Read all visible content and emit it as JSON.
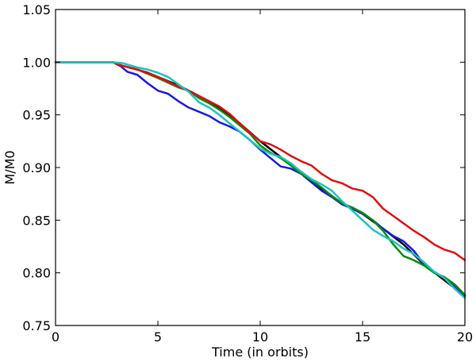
{
  "chart_data": {
    "type": "line",
    "title": "",
    "xlabel": "Time (in orbits)",
    "ylabel": "M/M0",
    "xlim": [
      0,
      20
    ],
    "ylim": [
      0.75,
      1.05
    ],
    "xticks": [
      0,
      5,
      10,
      15,
      20
    ],
    "xtick_labels": [
      "0",
      "5",
      "10",
      "15",
      "20"
    ],
    "yticks": [
      0.75,
      0.8,
      0.85,
      0.9,
      0.95,
      1.0,
      1.05
    ],
    "ytick_labels": [
      "0.75",
      "0.80",
      "0.85",
      "0.90",
      "0.95",
      "1.00",
      "1.05"
    ],
    "grid": false,
    "legend": "none",
    "series": [
      {
        "color": "#000000",
        "points": [
          [
            0,
            1.0
          ],
          [
            2.8,
            1.0
          ],
          [
            3.2,
            0.997
          ],
          [
            3.8,
            0.994
          ],
          [
            4.5,
            0.99
          ],
          [
            5,
            0.986
          ],
          [
            6,
            0.978
          ],
          [
            7,
            0.968
          ],
          [
            8,
            0.957
          ],
          [
            9,
            0.942
          ],
          [
            10,
            0.925
          ],
          [
            11,
            0.91
          ],
          [
            12,
            0.895
          ],
          [
            13,
            0.88
          ],
          [
            14,
            0.866
          ],
          [
            15,
            0.856
          ],
          [
            16,
            0.842
          ],
          [
            17,
            0.827
          ],
          [
            18,
            0.808
          ],
          [
            19,
            0.793
          ],
          [
            20,
            0.778
          ]
        ]
      },
      {
        "color": "#1a1adc",
        "points": [
          [
            0,
            1.0
          ],
          [
            2.8,
            1.0
          ],
          [
            3.2,
            0.996
          ],
          [
            3.5,
            0.991
          ],
          [
            4,
            0.988
          ],
          [
            4.5,
            0.98
          ],
          [
            5,
            0.973
          ],
          [
            5.5,
            0.97
          ],
          [
            6,
            0.963
          ],
          [
            6.5,
            0.957
          ],
          [
            7,
            0.953
          ],
          [
            7.5,
            0.949
          ],
          [
            8,
            0.943
          ],
          [
            8.5,
            0.939
          ],
          [
            9,
            0.934
          ],
          [
            9.5,
            0.926
          ],
          [
            10,
            0.917
          ],
          [
            10.5,
            0.909
          ],
          [
            11,
            0.901
          ],
          [
            11.5,
            0.899
          ],
          [
            12,
            0.894
          ],
          [
            12.5,
            0.886
          ],
          [
            13,
            0.878
          ],
          [
            13.5,
            0.872
          ],
          [
            14,
            0.865
          ],
          [
            14.5,
            0.861
          ],
          [
            15,
            0.856
          ],
          [
            15.5,
            0.85
          ],
          [
            16,
            0.842
          ],
          [
            16.5,
            0.835
          ],
          [
            17,
            0.83
          ],
          [
            17.5,
            0.821
          ],
          [
            18,
            0.808
          ],
          [
            18.5,
            0.801
          ],
          [
            19,
            0.795
          ],
          [
            19.5,
            0.787
          ],
          [
            20,
            0.779
          ]
        ]
      },
      {
        "color": "#0a8a0a",
        "points": [
          [
            0,
            1.0
          ],
          [
            2.8,
            1.0
          ],
          [
            3.2,
            0.997
          ],
          [
            4,
            0.993
          ],
          [
            5,
            0.985
          ],
          [
            6,
            0.976
          ],
          [
            6.5,
            0.973
          ],
          [
            7,
            0.966
          ],
          [
            7.5,
            0.961
          ],
          [
            8,
            0.955
          ],
          [
            8.5,
            0.948
          ],
          [
            9,
            0.94
          ],
          [
            9.5,
            0.932
          ],
          [
            10,
            0.921
          ],
          [
            10.5,
            0.914
          ],
          [
            11,
            0.909
          ],
          [
            11.5,
            0.902
          ],
          [
            12,
            0.894
          ],
          [
            12.5,
            0.888
          ],
          [
            13,
            0.881
          ],
          [
            13.5,
            0.873
          ],
          [
            14,
            0.866
          ],
          [
            14.5,
            0.862
          ],
          [
            15,
            0.857
          ],
          [
            15.5,
            0.85
          ],
          [
            16,
            0.84
          ],
          [
            16.5,
            0.827
          ],
          [
            17,
            0.816
          ],
          [
            17.5,
            0.812
          ],
          [
            18,
            0.807
          ],
          [
            18.5,
            0.8
          ],
          [
            19,
            0.796
          ],
          [
            19.5,
            0.789
          ],
          [
            20,
            0.779
          ]
        ]
      },
      {
        "color": "#e01010",
        "points": [
          [
            0,
            1.0
          ],
          [
            2.8,
            1.0
          ],
          [
            3.2,
            0.997
          ],
          [
            4,
            0.993
          ],
          [
            5,
            0.986
          ],
          [
            6,
            0.977
          ],
          [
            7,
            0.968
          ],
          [
            7.5,
            0.963
          ],
          [
            8,
            0.958
          ],
          [
            8.5,
            0.951
          ],
          [
            9,
            0.942
          ],
          [
            9.5,
            0.933
          ],
          [
            10,
            0.925
          ],
          [
            10.5,
            0.922
          ],
          [
            11,
            0.917
          ],
          [
            11.5,
            0.911
          ],
          [
            12,
            0.906
          ],
          [
            12.5,
            0.902
          ],
          [
            13,
            0.894
          ],
          [
            13.5,
            0.888
          ],
          [
            14,
            0.885
          ],
          [
            14.5,
            0.88
          ],
          [
            15,
            0.878
          ],
          [
            15.5,
            0.872
          ],
          [
            16,
            0.861
          ],
          [
            16.5,
            0.854
          ],
          [
            17,
            0.847
          ],
          [
            17.5,
            0.84
          ],
          [
            18,
            0.834
          ],
          [
            18.5,
            0.827
          ],
          [
            19,
            0.822
          ],
          [
            19.5,
            0.819
          ],
          [
            20,
            0.812
          ]
        ]
      },
      {
        "color": "#20c0c0",
        "points": [
          [
            0,
            1.0
          ],
          [
            2.8,
            1.0
          ],
          [
            3.3,
            0.999
          ],
          [
            4,
            0.995
          ],
          [
            4.5,
            0.993
          ],
          [
            5,
            0.99
          ],
          [
            5.5,
            0.986
          ],
          [
            6,
            0.979
          ],
          [
            6.5,
            0.972
          ],
          [
            7,
            0.962
          ],
          [
            7.5,
            0.957
          ],
          [
            8,
            0.95
          ],
          [
            8.5,
            0.942
          ],
          [
            9,
            0.934
          ],
          [
            9.5,
            0.926
          ],
          [
            10,
            0.918
          ],
          [
            10.5,
            0.913
          ],
          [
            11,
            0.91
          ],
          [
            11.5,
            0.904
          ],
          [
            12,
            0.896
          ],
          [
            12.5,
            0.889
          ],
          [
            13,
            0.884
          ],
          [
            13.5,
            0.878
          ],
          [
            14,
            0.868
          ],
          [
            14.5,
            0.859
          ],
          [
            15,
            0.85
          ],
          [
            15.5,
            0.841
          ],
          [
            16,
            0.835
          ],
          [
            16.5,
            0.83
          ],
          [
            17,
            0.823
          ],
          [
            17.5,
            0.818
          ],
          [
            18,
            0.81
          ],
          [
            18.5,
            0.801
          ],
          [
            19,
            0.795
          ],
          [
            19.5,
            0.785
          ],
          [
            20,
            0.776
          ]
        ]
      }
    ]
  }
}
